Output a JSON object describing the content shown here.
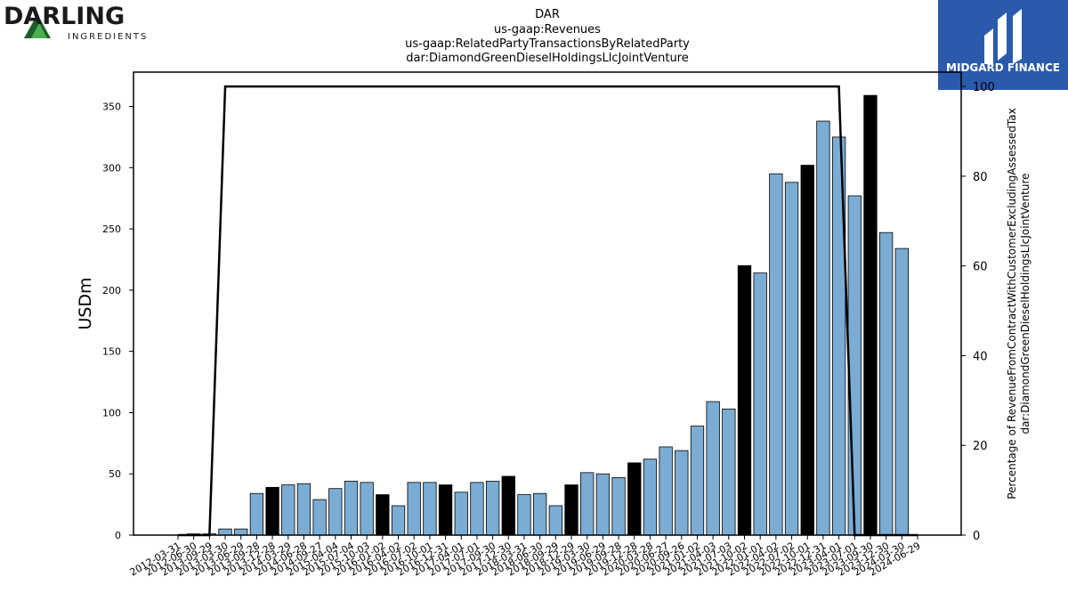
{
  "logos": {
    "left_brand": "DARLING",
    "left_sub": "INGREDIENTS",
    "right_brand": "MIDGARD FINANCE"
  },
  "chart_data": {
    "type": "bar",
    "title_lines": [
      "DAR",
      "us-gaap:Revenues",
      "us-gaap:RelatedPartyTransactionsByRelatedParty",
      "dar:DiamondGreenDieselHoldingsLlcJointVenture"
    ],
    "ylabel": "USDm",
    "y2label_lines": [
      "Percentage of RevenueFromContractWithCustomerExcludingAssessedTax",
      "dar:DiamondGreenDieselHoldingsLlcJointVenture"
    ],
    "ylim": [
      0,
      378
    ],
    "y_ticks": [
      0,
      50,
      100,
      150,
      200,
      250,
      300,
      350
    ],
    "y2lim": [
      0,
      103.2
    ],
    "y2_ticks": [
      0,
      20,
      40,
      60,
      80,
      100
    ],
    "grid": false,
    "legend": "none",
    "colors": {
      "bar": "#7bacd3",
      "bar_highlight": "#000000",
      "line": "#000000"
    },
    "categories": [
      "2012-03-31",
      "2012-06-30",
      "2013-09-29",
      "2013-03-30",
      "2013-06-29",
      "2013-09-28",
      "2013-12-28",
      "2014-03-29",
      "2014-06-28",
      "2014-09-27",
      "2015-04-04",
      "2015-07-04",
      "2015-10-03",
      "2016-01-02",
      "2016-04-02",
      "2016-07-02",
      "2016-10-01",
      "2016-12-31",
      "2017-04-01",
      "2017-07-01",
      "2017-09-30",
      "2017-12-30",
      "2018-03-31",
      "2018-06-30",
      "2018-09-29",
      "2018-12-29",
      "2019-03-30",
      "2019-06-29",
      "2019-09-28",
      "2019-12-28",
      "2020-03-28",
      "2020-06-27",
      "2020-09-26",
      "2021-01-02",
      "2021-04-03",
      "2021-07-03",
      "2021-10-02",
      "2022-01-01",
      "2022-04-02",
      "2022-07-02",
      "2022-10-01",
      "2022-12-31",
      "2023-04-01",
      "2023-07-01",
      "2023-09-30",
      "2023-12-30",
      "2024-03-30",
      "2024-06-29"
    ],
    "series": [
      {
        "kind": "bar",
        "values": [
          0,
          1,
          1,
          5,
          5,
          34,
          39,
          41,
          42,
          29,
          38,
          44,
          43,
          33,
          24,
          43,
          43,
          41,
          35,
          43,
          44,
          48,
          33,
          34,
          24,
          41,
          51,
          50,
          47,
          59,
          62,
          72,
          69,
          89,
          109,
          103,
          220,
          214,
          295,
          288,
          302,
          338,
          325,
          277,
          359,
          247,
          234,
          0
        ],
        "highlight": [
          false,
          false,
          false,
          false,
          false,
          false,
          true,
          false,
          false,
          false,
          false,
          false,
          false,
          true,
          false,
          false,
          false,
          true,
          false,
          false,
          false,
          true,
          false,
          false,
          false,
          true,
          false,
          false,
          false,
          true,
          false,
          false,
          false,
          false,
          false,
          false,
          true,
          false,
          false,
          false,
          true,
          false,
          false,
          false,
          true,
          false,
          false,
          false
        ]
      },
      {
        "kind": "line",
        "axis": "right",
        "values": [
          0,
          0,
          0,
          100,
          100,
          100,
          100,
          100,
          100,
          100,
          100,
          100,
          100,
          100,
          100,
          100,
          100,
          100,
          100,
          100,
          100,
          100,
          100,
          100,
          100,
          100,
          100,
          100,
          100,
          100,
          100,
          100,
          100,
          100,
          100,
          100,
          100,
          100,
          100,
          100,
          100,
          100,
          100,
          0,
          0,
          0,
          0,
          0
        ]
      }
    ]
  }
}
